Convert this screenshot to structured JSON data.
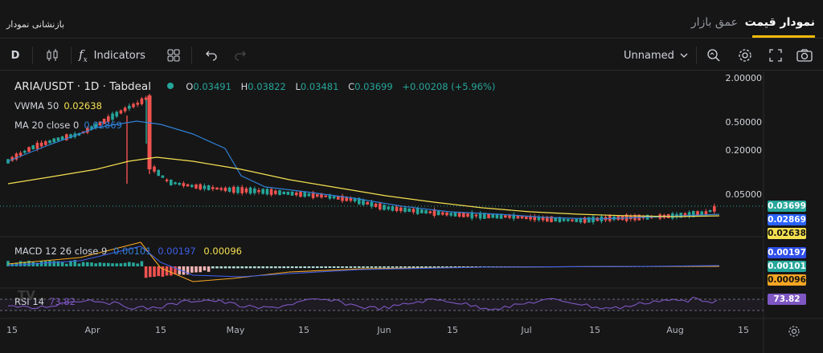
{
  "topbar": {
    "reset_link": "بازنشانی نمودار",
    "tab_depth": "عمق بازار",
    "tab_price": "نمودار قیمت",
    "accent": "#f0b90b"
  },
  "toolbar": {
    "interval": "D",
    "indicators_label": "Indicators",
    "layout_name": "Unnamed",
    "icons": [
      "candles-icon",
      "fx-icon",
      "grid-icon",
      "undo-icon",
      "redo-icon",
      "chevron-down-icon",
      "magnify-icon",
      "settings-icon",
      "fullscreen-icon",
      "camera-icon"
    ]
  },
  "legend": {
    "symbol": "ARIA/USDT · 1D · Tabdeal",
    "o_label": "O",
    "o": "0.03491",
    "h_label": "H",
    "h": "0.03822",
    "l_label": "L",
    "l": "0.03481",
    "c_label": "C",
    "c": "0.03699",
    "change": "+0.00208 (+5.96%)",
    "vwma_label": "VWMA 50",
    "vwma": "0.02638",
    "ma_label": "MA 20 close 0",
    "ma": "0.02869",
    "macd_label": "MACD 12 26 close 9",
    "macd_v1": "0.00101",
    "macd_v2": "0.00197",
    "macd_v3": "0.00096",
    "rsi_label": "RSI 14",
    "rsi": "73.82"
  },
  "price_axis": [
    "2.00000",
    "0.50000",
    "0.20000",
    "0.05000"
  ],
  "badges": {
    "last": "0.03699",
    "ma": "0.02869",
    "vwma": "0.02638",
    "macd_signal": "0.00197",
    "macd": "0.00101",
    "macd_hist": "0.00096",
    "rsi": "73.82"
  },
  "time_axis": [
    "15",
    "Apr",
    "15",
    "May",
    "15",
    "Jun",
    "15",
    "Jul",
    "15",
    "Aug",
    "15"
  ],
  "colors": {
    "up": "#26a69a",
    "down": "#ef5350",
    "ma": "#2962ff",
    "vwma": "#f5e050",
    "macd_signal": "#3f5ee8",
    "macd_line": "#f5a623",
    "rsi": "#7e57c2"
  },
  "chart_data": {
    "type": "candlestick",
    "scale": "log",
    "series": [
      {
        "name": "ARIA/USDT",
        "last_close": 0.03699
      },
      {
        "name": "VWMA 50",
        "last": 0.02638
      },
      {
        "name": "MA 20 close 0",
        "last": 0.02869
      }
    ]
  }
}
